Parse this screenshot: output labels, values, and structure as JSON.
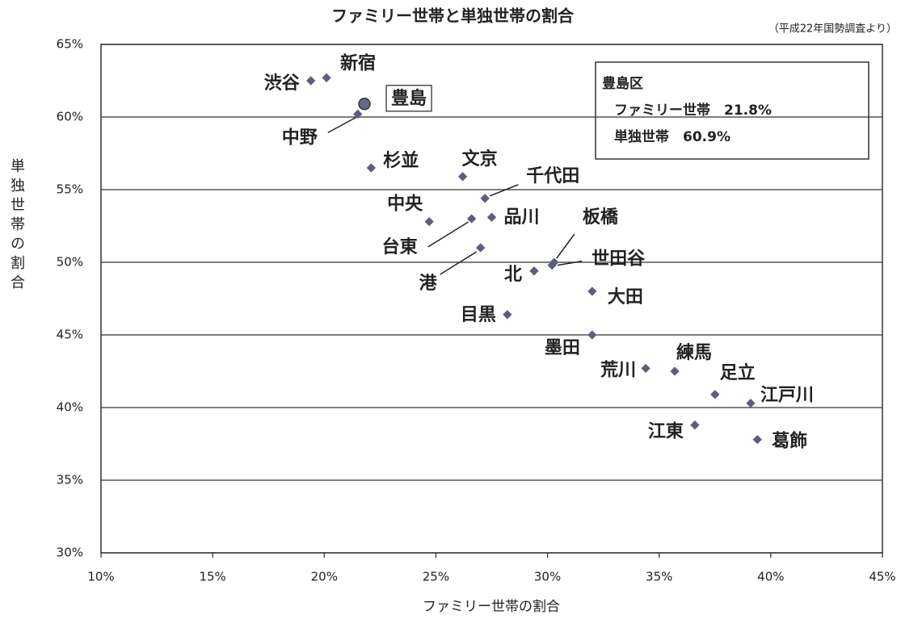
{
  "chart_data": {
    "type": "scatter",
    "title": "ファミリー世帯と単独世帯の割合",
    "subtitle": "（平成22年国勢調査より）",
    "x_label": "ファミリー世帯の割合",
    "y_label": "単独世帯の割合",
    "xlim": [
      10,
      45
    ],
    "ylim": [
      30,
      65
    ],
    "xticks": [
      {
        "value": 10,
        "label": "10%"
      },
      {
        "value": 15,
        "label": "15%"
      },
      {
        "value": 20,
        "label": "20%"
      },
      {
        "value": 25,
        "label": "25%"
      },
      {
        "value": 30,
        "label": "30%"
      },
      {
        "value": 35,
        "label": "35%"
      },
      {
        "value": 40,
        "label": "40%"
      },
      {
        "value": 45,
        "label": "45%"
      }
    ],
    "yticks": [
      {
        "value": 30,
        "label": "30%"
      },
      {
        "value": 35,
        "label": "35%"
      },
      {
        "value": 40,
        "label": "40%"
      },
      {
        "value": 45,
        "label": "45%"
      },
      {
        "value": 50,
        "label": "50%"
      },
      {
        "value": 55,
        "label": "55%"
      },
      {
        "value": 60,
        "label": "60%"
      },
      {
        "value": 65,
        "label": "65%"
      }
    ],
    "grid": true,
    "series": [
      {
        "color": "#646a88",
        "marker": "circle",
        "x": [
          21.8
        ],
        "values": [
          60.9
        ],
        "labels": [
          "豊島"
        ]
      },
      {
        "color": "#5a5f7c",
        "marker": "diamond",
        "x": [
          19.4,
          20.1,
          21.5,
          22.1,
          26.2,
          27.2,
          24.7,
          26.6,
          27.5,
          27.0,
          30.3,
          30.2,
          29.4,
          32.0,
          28.2,
          32.0,
          34.4,
          35.7,
          37.5,
          39.1,
          36.6,
          39.4
        ],
        "values": [
          62.5,
          62.7,
          60.2,
          56.5,
          55.9,
          54.4,
          52.8,
          53.0,
          53.1,
          51.0,
          50.0,
          49.8,
          49.4,
          48.0,
          46.4,
          45.0,
          42.7,
          42.5,
          40.9,
          40.3,
          38.8,
          37.8
        ],
        "labels": [
          "渋谷",
          "新宿",
          "中野",
          "杉並",
          "文京",
          "千代田",
          "中央",
          "台東",
          "品川",
          "港",
          "板橋",
          "世田谷",
          "北",
          "大田",
          "目黒",
          "墨田",
          "荒川",
          "練馬",
          "足立",
          "江戸川",
          "江東",
          "葛飾"
        ]
      }
    ],
    "annotation": {
      "title": "豊島区",
      "lines": [
        "ファミリー世帯　21.8%",
        "単独世帯　60.9%"
      ]
    }
  }
}
